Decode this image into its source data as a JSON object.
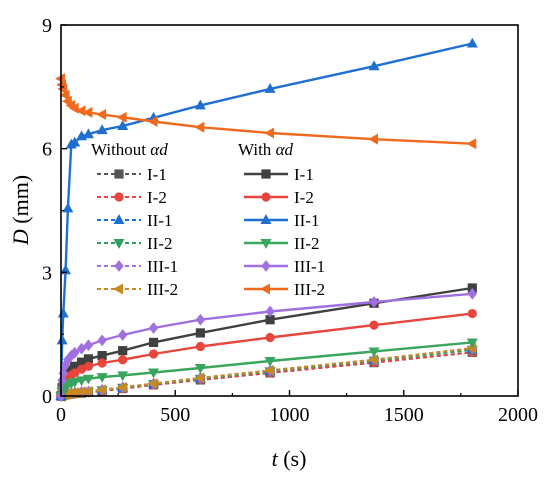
{
  "chart_data": {
    "type": "line",
    "title": "",
    "xlabel": {
      "italic": "t",
      "rest": " (s)"
    },
    "ylabel": {
      "italic": "D",
      "rest": " (mm)"
    },
    "xlim": [
      0,
      2000
    ],
    "ylim": [
      0,
      9
    ],
    "xticks": [
      "0",
      "500",
      "1000",
      "1500",
      "2000"
    ],
    "yticks": [
      "0",
      "3",
      "6",
      "9"
    ],
    "x": [
      0,
      5,
      10,
      20,
      30,
      45,
      60,
      90,
      120,
      180,
      270,
      405,
      610,
      915,
      1370,
      1800
    ],
    "legend": {
      "position": "upper-left",
      "group_titles": [
        {
          "text": "Without ",
          "sym": "αd"
        },
        {
          "text": "With ",
          "sym": "αd"
        }
      ]
    },
    "series": [
      {
        "name": "I-1",
        "group": "Without αd",
        "color": "#555555",
        "marker": "square",
        "dashed": true,
        "values": [
          0,
          0.01,
          0.02,
          0.03,
          0.04,
          0.05,
          0.06,
          0.07,
          0.09,
          0.12,
          0.18,
          0.27,
          0.39,
          0.56,
          0.81,
          1.06
        ]
      },
      {
        "name": "I-2",
        "group": "Without αd",
        "color": "#e8453c",
        "marker": "circle",
        "dashed": true,
        "values": [
          0,
          0.01,
          0.02,
          0.03,
          0.04,
          0.05,
          0.06,
          0.07,
          0.09,
          0.12,
          0.18,
          0.27,
          0.39,
          0.56,
          0.81,
          1.06
        ]
      },
      {
        "name": "II-1",
        "group": "Without αd",
        "color": "#1f6fd0",
        "marker": "triangle-up",
        "dashed": true,
        "values": [
          0,
          0.01,
          0.02,
          0.04,
          0.05,
          0.06,
          0.07,
          0.09,
          0.1,
          0.14,
          0.2,
          0.29,
          0.42,
          0.6,
          0.86,
          1.12
        ]
      },
      {
        "name": "II-2",
        "group": "Without αd",
        "color": "#2f9e5e",
        "marker": "triangle-down",
        "dashed": true,
        "values": [
          0,
          0.01,
          0.02,
          0.04,
          0.05,
          0.06,
          0.07,
          0.09,
          0.1,
          0.14,
          0.2,
          0.29,
          0.42,
          0.6,
          0.86,
          1.12
        ]
      },
      {
        "name": "III-1",
        "group": "Without αd",
        "color": "#a070e0",
        "marker": "diamond",
        "dashed": true,
        "values": [
          0,
          0.01,
          0.02,
          0.04,
          0.05,
          0.07,
          0.08,
          0.1,
          0.11,
          0.15,
          0.21,
          0.3,
          0.44,
          0.62,
          0.88,
          1.16
        ]
      },
      {
        "name": "III-2",
        "group": "Without αd",
        "color": "#c88a1e",
        "marker": "triangle-left",
        "dashed": true,
        "values": [
          0,
          0.01,
          0.02,
          0.04,
          0.05,
          0.07,
          0.08,
          0.1,
          0.11,
          0.15,
          0.21,
          0.3,
          0.44,
          0.62,
          0.88,
          1.16
        ]
      },
      {
        "name": "I-1",
        "group": "With αd",
        "color": "#404040",
        "marker": "square",
        "dashed": false,
        "values": [
          0,
          0.2,
          0.32,
          0.45,
          0.55,
          0.65,
          0.72,
          0.82,
          0.9,
          0.98,
          1.1,
          1.3,
          1.53,
          1.85,
          2.25,
          2.62
        ]
      },
      {
        "name": "I-2",
        "group": "With αd",
        "color": "#e8453c",
        "marker": "circle",
        "dashed": false,
        "values": [
          0,
          0.15,
          0.25,
          0.35,
          0.42,
          0.5,
          0.56,
          0.65,
          0.72,
          0.8,
          0.88,
          1.02,
          1.2,
          1.42,
          1.72,
          2.0
        ]
      },
      {
        "name": "II-1",
        "group": "With αd",
        "color": "#1f6fd0",
        "marker": "triangle-up",
        "dashed": false,
        "values": [
          0,
          1.35,
          2.0,
          3.05,
          4.55,
          6.1,
          6.15,
          6.3,
          6.35,
          6.45,
          6.55,
          6.75,
          7.05,
          7.45,
          8.0,
          8.55
        ]
      },
      {
        "name": "II-2",
        "group": "With αd",
        "color": "#3aa55e",
        "marker": "triangle-down",
        "dashed": false,
        "values": [
          0,
          0.1,
          0.16,
          0.22,
          0.27,
          0.31,
          0.34,
          0.38,
          0.42,
          0.46,
          0.5,
          0.57,
          0.68,
          0.85,
          1.08,
          1.3
        ]
      },
      {
        "name": "III-1",
        "group": "With αd",
        "color": "#a070e0",
        "marker": "diamond",
        "dashed": false,
        "values": [
          0,
          0.38,
          0.55,
          0.75,
          0.88,
          0.98,
          1.05,
          1.15,
          1.23,
          1.35,
          1.48,
          1.65,
          1.85,
          2.05,
          2.28,
          2.48
        ]
      },
      {
        "name": "III-2",
        "group": "With αd",
        "color": "#f06a1e",
        "marker": "triangle-left",
        "dashed": false,
        "values": [
          7.7,
          7.55,
          7.45,
          7.3,
          7.15,
          7.05,
          6.98,
          6.92,
          6.88,
          6.83,
          6.76,
          6.66,
          6.52,
          6.38,
          6.23,
          6.12
        ]
      }
    ]
  }
}
